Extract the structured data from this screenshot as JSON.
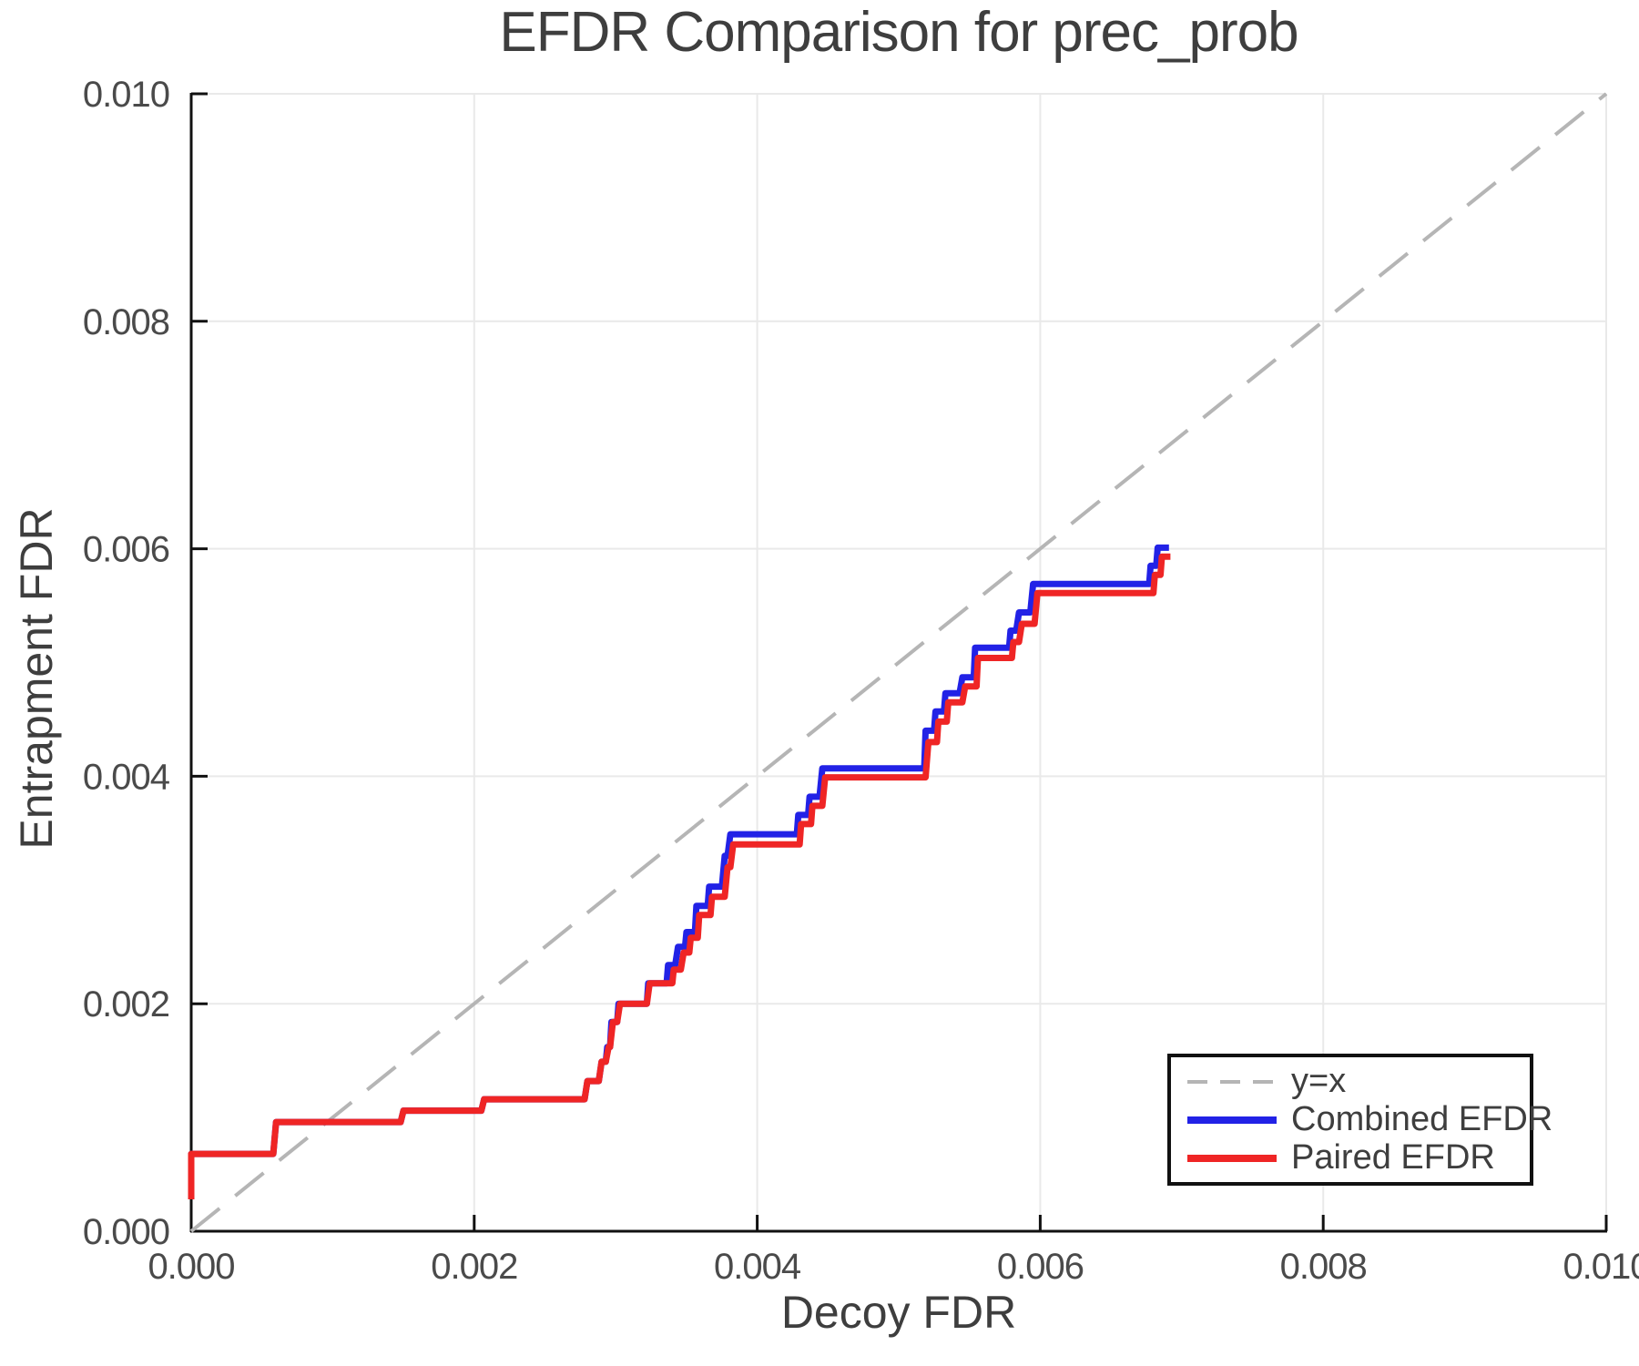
{
  "title": "EFDR Comparison for prec_prob",
  "axes": {
    "x": {
      "label": "Decoy FDR",
      "ticks": [
        {
          "v": 0.0,
          "label": "0.000"
        },
        {
          "v": 0.002,
          "label": "0.002"
        },
        {
          "v": 0.004,
          "label": "0.004"
        },
        {
          "v": 0.006,
          "label": "0.006"
        },
        {
          "v": 0.008,
          "label": "0.008"
        },
        {
          "v": 0.01,
          "label": "0.010"
        }
      ]
    },
    "y": {
      "label": "Entrapment FDR",
      "ticks": [
        {
          "v": 0.0,
          "label": "0.000"
        },
        {
          "v": 0.002,
          "label": "0.002"
        },
        {
          "v": 0.004,
          "label": "0.004"
        },
        {
          "v": 0.006,
          "label": "0.006"
        },
        {
          "v": 0.008,
          "label": "0.008"
        },
        {
          "v": 0.01,
          "label": "0.010"
        }
      ]
    }
  },
  "legend": {
    "position": "bottom-right",
    "items": [
      {
        "label": "y=x",
        "color": "#b5b5b5",
        "dashed": true
      },
      {
        "label": "Combined EFDR",
        "color": "#2222e6",
        "dashed": false
      },
      {
        "label": "Paired EFDR",
        "color": "#ef2525",
        "dashed": false
      }
    ]
  },
  "colors": {
    "grid": "#e9e9e9",
    "spine": "#111111",
    "tick_text": "#4a4a4a",
    "title_text": "#3e3e3e"
  },
  "chart_data": {
    "type": "line",
    "title": "EFDR Comparison for prec_prob",
    "xlabel": "Decoy FDR",
    "ylabel": "Entrapment FDR",
    "xlim": [
      0.0,
      0.01
    ],
    "ylim": [
      0.0,
      0.01
    ],
    "grid": true,
    "legend_position": "bottom-right",
    "series": [
      {
        "name": "y=x",
        "color": "#b5b5b5",
        "style": "dashed",
        "width": 4,
        "dash": "40 22",
        "points": [
          [
            0.0,
            0.0
          ],
          [
            0.01,
            0.01
          ]
        ]
      },
      {
        "name": "Combined EFDR",
        "color": "#2222e6",
        "style": "solid",
        "width": 7,
        "points": [
          [
            0.0,
            0.00028
          ],
          [
            0.0,
            0.00068
          ],
          [
            0.00058,
            0.00068
          ],
          [
            0.0006,
            0.00096
          ],
          [
            0.00148,
            0.00096
          ],
          [
            0.0015,
            0.00106
          ],
          [
            0.00205,
            0.00106
          ],
          [
            0.00207,
            0.00116
          ],
          [
            0.00278,
            0.00116
          ],
          [
            0.0028,
            0.00132
          ],
          [
            0.00288,
            0.00132
          ],
          [
            0.0029,
            0.00149
          ],
          [
            0.00293,
            0.00149
          ],
          [
            0.00294,
            0.00162
          ],
          [
            0.00296,
            0.00162
          ],
          [
            0.00297,
            0.00184
          ],
          [
            0.00301,
            0.00184
          ],
          [
            0.00302,
            0.002
          ],
          [
            0.00322,
            0.002
          ],
          [
            0.00323,
            0.00218
          ],
          [
            0.00336,
            0.00218
          ],
          [
            0.00337,
            0.00234
          ],
          [
            0.00342,
            0.00234
          ],
          [
            0.00344,
            0.0025
          ],
          [
            0.00349,
            0.0025
          ],
          [
            0.0035,
            0.00263
          ],
          [
            0.00356,
            0.00263
          ],
          [
            0.00357,
            0.00286
          ],
          [
            0.00365,
            0.00286
          ],
          [
            0.00366,
            0.00303
          ],
          [
            0.00375,
            0.00303
          ],
          [
            0.00377,
            0.0033
          ],
          [
            0.00379,
            0.0033
          ],
          [
            0.00381,
            0.00349
          ],
          [
            0.00428,
            0.00349
          ],
          [
            0.00429,
            0.00366
          ],
          [
            0.00436,
            0.00366
          ],
          [
            0.00437,
            0.00382
          ],
          [
            0.00444,
            0.00382
          ],
          [
            0.00446,
            0.00407
          ],
          [
            0.00518,
            0.00407
          ],
          [
            0.00519,
            0.0044
          ],
          [
            0.00525,
            0.0044
          ],
          [
            0.00526,
            0.00457
          ],
          [
            0.00532,
            0.00457
          ],
          [
            0.00533,
            0.00473
          ],
          [
            0.00543,
            0.00473
          ],
          [
            0.00545,
            0.00487
          ],
          [
            0.00553,
            0.00487
          ],
          [
            0.00554,
            0.00513
          ],
          [
            0.00578,
            0.00513
          ],
          [
            0.00579,
            0.00528
          ],
          [
            0.00583,
            0.00528
          ],
          [
            0.00585,
            0.00544
          ],
          [
            0.00593,
            0.00544
          ],
          [
            0.00595,
            0.00569
          ],
          [
            0.00677,
            0.00569
          ],
          [
            0.00678,
            0.00585
          ],
          [
            0.00682,
            0.00585
          ],
          [
            0.00683,
            0.00601
          ],
          [
            0.00691,
            0.00601
          ]
        ]
      },
      {
        "name": "Paired EFDR",
        "color": "#ef2525",
        "style": "solid",
        "width": 7,
        "points": [
          [
            0.0,
            0.00028
          ],
          [
            0.0,
            0.00068
          ],
          [
            0.00058,
            0.00068
          ],
          [
            0.0006,
            0.00096
          ],
          [
            0.00148,
            0.00096
          ],
          [
            0.0015,
            0.00106
          ],
          [
            0.00205,
            0.00106
          ],
          [
            0.00207,
            0.00116
          ],
          [
            0.00278,
            0.00116
          ],
          [
            0.0028,
            0.00132
          ],
          [
            0.00288,
            0.00132
          ],
          [
            0.0029,
            0.00149
          ],
          [
            0.00293,
            0.00149
          ],
          [
            0.00295,
            0.00162
          ],
          [
            0.00296,
            0.00162
          ],
          [
            0.00298,
            0.00184
          ],
          [
            0.00301,
            0.00184
          ],
          [
            0.00303,
            0.002
          ],
          [
            0.00322,
            0.002
          ],
          [
            0.00324,
            0.00218
          ],
          [
            0.0034,
            0.00218
          ],
          [
            0.00341,
            0.0023
          ],
          [
            0.00346,
            0.0023
          ],
          [
            0.00348,
            0.00245
          ],
          [
            0.00352,
            0.00245
          ],
          [
            0.00353,
            0.00258
          ],
          [
            0.00358,
            0.00258
          ],
          [
            0.00359,
            0.00278
          ],
          [
            0.00367,
            0.00278
          ],
          [
            0.00368,
            0.00294
          ],
          [
            0.00377,
            0.00294
          ],
          [
            0.00379,
            0.0032
          ],
          [
            0.00381,
            0.0032
          ],
          [
            0.00383,
            0.0034
          ],
          [
            0.0043,
            0.0034
          ],
          [
            0.00431,
            0.00358
          ],
          [
            0.00438,
            0.00358
          ],
          [
            0.00439,
            0.00374
          ],
          [
            0.00446,
            0.00374
          ],
          [
            0.00448,
            0.00399
          ],
          [
            0.00519,
            0.00399
          ],
          [
            0.00521,
            0.0043
          ],
          [
            0.00527,
            0.0043
          ],
          [
            0.00528,
            0.00448
          ],
          [
            0.00534,
            0.00448
          ],
          [
            0.00535,
            0.00465
          ],
          [
            0.00545,
            0.00465
          ],
          [
            0.00547,
            0.00479
          ],
          [
            0.00555,
            0.00479
          ],
          [
            0.00556,
            0.00504
          ],
          [
            0.0058,
            0.00504
          ],
          [
            0.00581,
            0.00518
          ],
          [
            0.00585,
            0.00518
          ],
          [
            0.00587,
            0.00534
          ],
          [
            0.00596,
            0.00534
          ],
          [
            0.00598,
            0.00561
          ],
          [
            0.0068,
            0.00561
          ],
          [
            0.00681,
            0.00577
          ],
          [
            0.00685,
            0.00577
          ],
          [
            0.00686,
            0.00593
          ],
          [
            0.00692,
            0.00593
          ]
        ]
      }
    ]
  }
}
